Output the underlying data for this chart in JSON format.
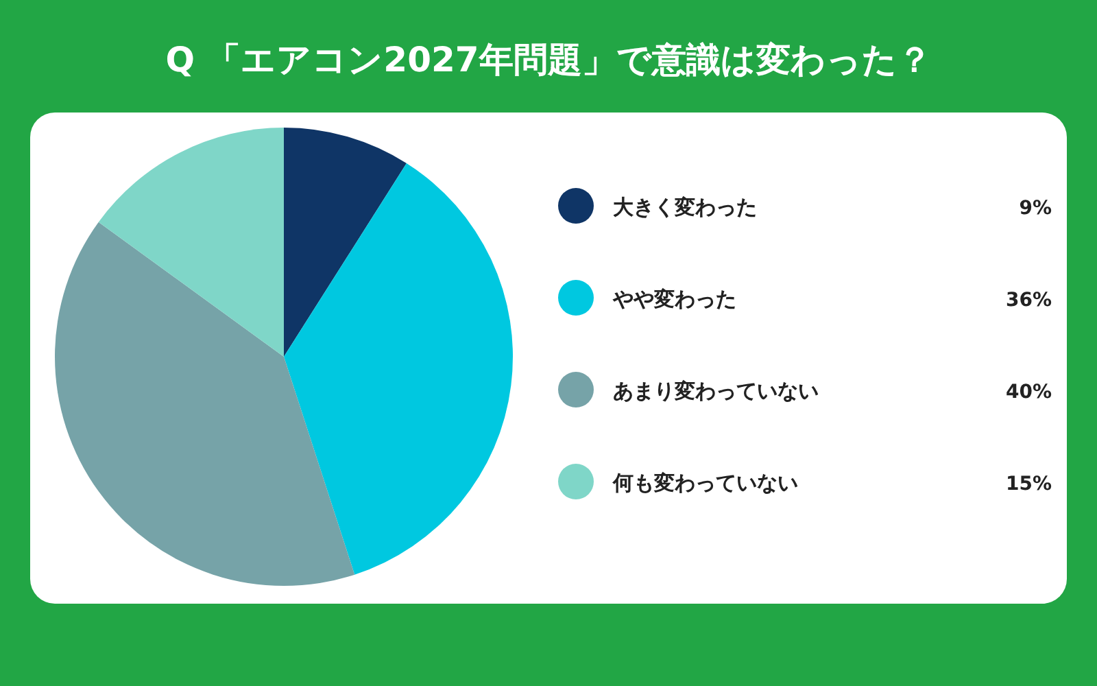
{
  "chart_data": {
    "type": "pie",
    "title": "Q 「エアコン2027年問題」で意識は変わった？",
    "categories": [
      "大きく変わった",
      "やや変わった",
      "あまり変わっていない",
      "何も変わっていない"
    ],
    "values": [
      9,
      36,
      40,
      15
    ],
    "value_labels": [
      "9%",
      "36%",
      "40%",
      "15%"
    ],
    "colors": [
      "#0f3566",
      "#00c8e0",
      "#76a3a8",
      "#7fd6c8"
    ],
    "legend": "right"
  }
}
